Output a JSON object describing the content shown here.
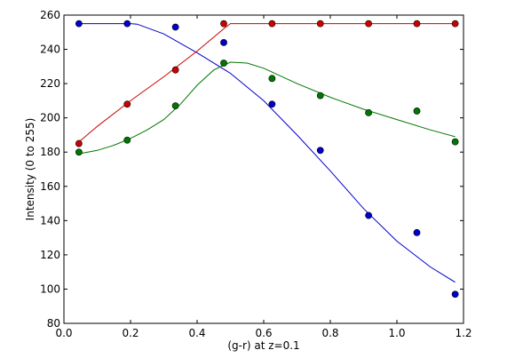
{
  "chart_data": {
    "type": "scatter",
    "title": "",
    "xlabel": "(g-r) at z=0.1",
    "ylabel": "Intensity (0 to 255)",
    "xlim": [
      0.0,
      1.2
    ],
    "ylim": [
      80,
      260
    ],
    "xticks": [
      0.0,
      0.2,
      0.4,
      0.6,
      0.8,
      1.0,
      1.2
    ],
    "xtick_labels": [
      "0.0",
      "0.2",
      "0.4",
      "0.6",
      "0.8",
      "1.0",
      "1.2"
    ],
    "yticks": [
      80,
      100,
      120,
      140,
      160,
      180,
      200,
      220,
      240,
      260
    ],
    "ytick_labels": [
      "80",
      "100",
      "120",
      "140",
      "160",
      "180",
      "200",
      "220",
      "240",
      "260"
    ],
    "grid": false,
    "legend": false,
    "series": [
      {
        "color": "#0000cc",
        "points": {
          "x": [
            0.045,
            0.19,
            0.335,
            0.48,
            0.625,
            0.77,
            0.915,
            1.06,
            1.175
          ],
          "y": [
            255,
            255,
            253,
            244,
            208,
            181,
            143,
            133,
            97
          ]
        },
        "curve": {
          "x": [
            0.045,
            0.1,
            0.15,
            0.2,
            0.22,
            0.3,
            0.4,
            0.5,
            0.6,
            0.7,
            0.8,
            0.9,
            1.0,
            1.1,
            1.175
          ],
          "y": [
            255,
            255,
            255,
            255,
            254.7,
            249,
            238,
            226,
            210,
            190,
            169,
            147,
            128,
            113,
            104
          ]
        }
      },
      {
        "color": "#cc0000",
        "points": {
          "x": [
            0.045,
            0.19,
            0.335,
            0.48,
            0.625,
            0.77,
            0.915,
            1.06,
            1.175
          ],
          "y": [
            185,
            208,
            228,
            255,
            255,
            255,
            255,
            255,
            255
          ]
        },
        "curve": {
          "x": [
            0.045,
            0.1,
            0.2,
            0.3,
            0.4,
            0.48,
            0.5,
            0.6,
            0.7,
            0.8,
            0.9,
            1.0,
            1.1,
            1.175
          ],
          "y": [
            186,
            195,
            210,
            224,
            239,
            252,
            255,
            255,
            255,
            255,
            255,
            255,
            255,
            255
          ]
        }
      },
      {
        "color": "#007700",
        "points": {
          "x": [
            0.045,
            0.19,
            0.335,
            0.48,
            0.625,
            0.77,
            0.915,
            1.06,
            1.175
          ],
          "y": [
            180,
            187,
            207,
            232,
            223,
            213,
            203,
            204,
            186
          ]
        },
        "curve": {
          "x": [
            0.045,
            0.1,
            0.15,
            0.2,
            0.25,
            0.3,
            0.35,
            0.4,
            0.45,
            0.5,
            0.55,
            0.6,
            0.7,
            0.8,
            0.9,
            1.0,
            1.1,
            1.175
          ],
          "y": [
            179,
            181,
            184,
            188,
            193,
            199,
            208,
            219,
            228,
            232.5,
            232,
            229,
            220,
            212,
            205,
            199,
            193,
            189
          ]
        }
      }
    ]
  }
}
